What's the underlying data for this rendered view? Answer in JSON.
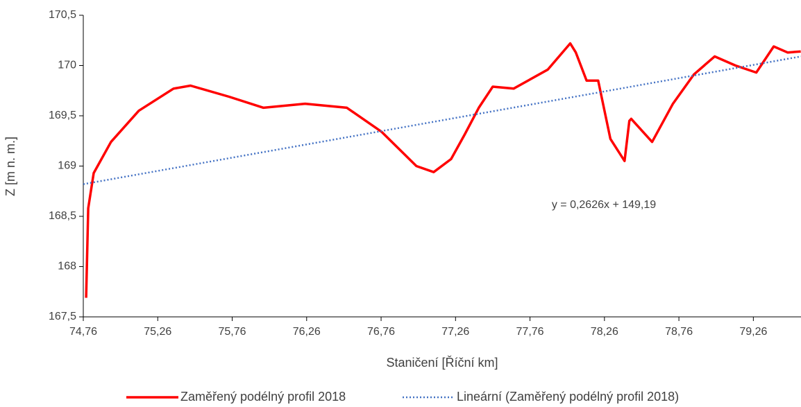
{
  "chart_data": {
    "type": "line",
    "xlabel": "Staničení [Říční km]",
    "ylabel": "Z [m n. m.]",
    "annotation": "y = 0,2626x + 149,19",
    "xlim": [
      74.76,
      79.58
    ],
    "ylim": [
      167.5,
      170.5
    ],
    "xticks": [
      {
        "value": 74.76,
        "label": "74,76"
      },
      {
        "value": 75.26,
        "label": "75,26"
      },
      {
        "value": 75.76,
        "label": "75,76"
      },
      {
        "value": 76.26,
        "label": "76,26"
      },
      {
        "value": 76.76,
        "label": "76,76"
      },
      {
        "value": 77.26,
        "label": "77,26"
      },
      {
        "value": 77.76,
        "label": "77,76"
      },
      {
        "value": 78.26,
        "label": "78,26"
      },
      {
        "value": 78.76,
        "label": "78,76"
      },
      {
        "value": 79.26,
        "label": "79,26"
      }
    ],
    "yticks": [
      {
        "value": 167.5,
        "label": "167,5"
      },
      168,
      {
        "value": 168.5,
        "label": "168,5"
      },
      169,
      {
        "value": 169.5,
        "label": "169,5"
      },
      170,
      {
        "value": 170.5,
        "label": "170,5"
      }
    ],
    "legend": "bottom",
    "series": [
      {
        "name": "Zaměřený podélný profil 2018",
        "color": "#ff0000",
        "style": "solid",
        "x": [
          74.779,
          74.793,
          74.83,
          74.946,
          75.133,
          75.366,
          75.48,
          75.739,
          75.97,
          76.25,
          76.53,
          76.764,
          76.997,
          77.113,
          77.23,
          77.32,
          77.416,
          77.51,
          77.65,
          77.88,
          78.03,
          78.068,
          78.14,
          78.218,
          78.3,
          78.395,
          78.427,
          78.44,
          78.58,
          78.72,
          78.86,
          79.0,
          79.14,
          79.28,
          79.397,
          79.49,
          79.578
        ],
        "values": [
          167.69,
          168.58,
          168.93,
          169.24,
          169.55,
          169.77,
          169.8,
          169.69,
          169.58,
          169.62,
          169.58,
          169.34,
          169.0,
          168.94,
          169.07,
          169.31,
          169.58,
          169.79,
          169.77,
          169.96,
          170.22,
          170.13,
          169.85,
          169.85,
          169.27,
          169.05,
          169.45,
          169.47,
          169.24,
          169.62,
          169.91,
          170.09,
          170.0,
          169.93,
          170.19,
          170.13,
          170.14
        ]
      },
      {
        "name": "Lineární (Zaměřený podélný profil 2018)",
        "color": "#4472c4",
        "style": "dotted",
        "x": [
          74.76,
          79.58
        ],
        "values": [
          168.82,
          170.09
        ]
      }
    ]
  }
}
